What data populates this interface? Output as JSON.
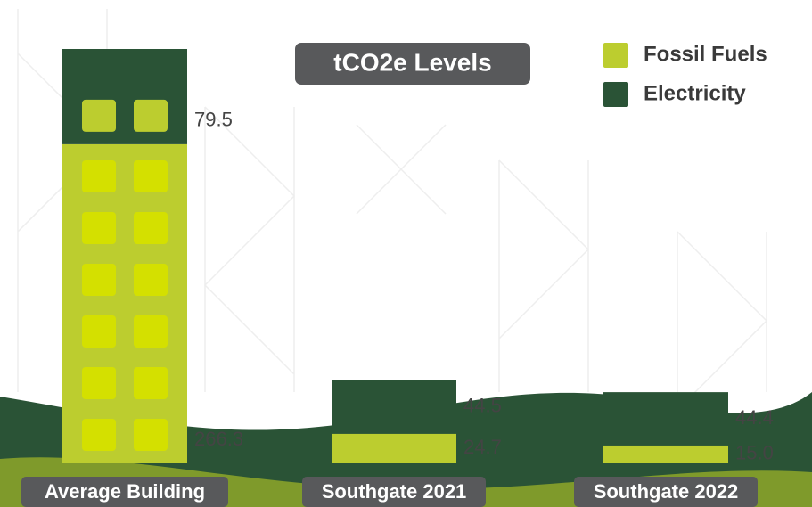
{
  "chart_data": {
    "type": "stacked-bar",
    "title": "tCO2e Levels",
    "categories": [
      "Average Building",
      "Southgate 2021",
      "Southgate 2022"
    ],
    "series": [
      {
        "name": "Fossil Fuels",
        "color": "#bccd2f",
        "values": [
          266.3,
          24.7,
          15.0
        ],
        "value_labels": [
          "266.3",
          "24.7",
          "15.0"
        ]
      },
      {
        "name": "Electricity",
        "color": "#2a5336",
        "values": [
          79.5,
          44.5,
          44.4
        ],
        "value_labels": [
          "79.5",
          "44.5",
          "44.4"
        ]
      }
    ],
    "legend": "top-right"
  }
}
